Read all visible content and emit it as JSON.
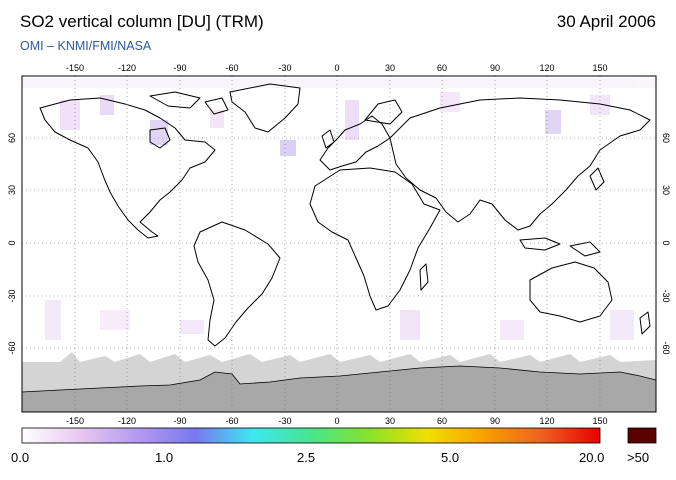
{
  "header": {
    "title": "SO2 vertical column [DU] (TRM)",
    "date": "30 April 2006",
    "credit": "OMI  –  KNMI/FMI/NASA"
  },
  "map": {
    "lon_ticks": [
      "-150",
      "-120",
      "-90",
      "-60",
      "-30",
      "0",
      "30",
      "60",
      "90",
      "120",
      "150"
    ],
    "lat_ticks": [
      "60",
      "30",
      "0",
      "-30",
      "-60"
    ],
    "colors": {
      "land_outline": "#000000",
      "no_data": "#d4d4d4",
      "antarctica": "#a8a8a8",
      "background": "#ffffff",
      "low_so2": "#cfb3ec"
    }
  },
  "colorbar": {
    "labels": [
      "0.0",
      "1.0",
      "2.5",
      "5.0",
      "20.0",
      ">50"
    ],
    "stops": [
      "#ffffff",
      "#e8c8f0",
      "#b49af0",
      "#7878f0",
      "#3ce8f0",
      "#46e68c",
      "#88e22a",
      "#f0e000",
      "#f8a000",
      "#f06020",
      "#e80000"
    ],
    "overflow_color": "#5a0000"
  }
}
